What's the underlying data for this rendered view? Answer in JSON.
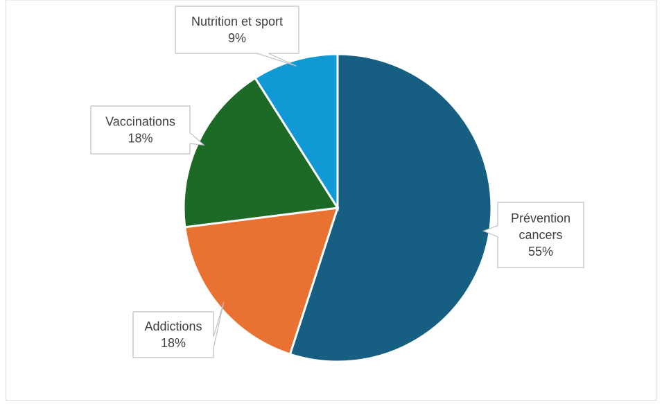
{
  "chart_data": {
    "type": "pie",
    "title": "",
    "slices": [
      {
        "label": "Prévention cancers",
        "value": 55,
        "percent_label": "55%",
        "color": "#165f83"
      },
      {
        "label": "Addictions",
        "value": 18,
        "percent_label": "18%",
        "color": "#e97132"
      },
      {
        "label": "Vaccinations",
        "value": 18,
        "percent_label": "18%",
        "color": "#1d6a27"
      },
      {
        "label": "Nutrition et sport",
        "value": 9,
        "percent_label": "9%",
        "color": "#1099d4"
      }
    ]
  }
}
